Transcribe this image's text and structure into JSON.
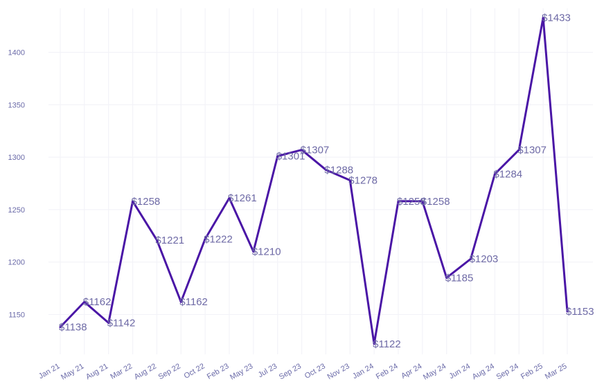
{
  "chart_data": {
    "type": "line",
    "title": "",
    "xlabel": "",
    "ylabel": "",
    "categories": [
      "Jan 21",
      "May 21",
      "Aug 21",
      "Mar 22",
      "Aug 22",
      "Sep 22",
      "Oct 22",
      "Feb 23",
      "May 23",
      "Jul 23",
      "Sep 23",
      "Oct 23",
      "Nov 23",
      "Jan 24",
      "Feb 24",
      "Apr 24",
      "May 24",
      "Jun 24",
      "Aug 24",
      "Sep 24",
      "Feb 25",
      "Mar 25"
    ],
    "series": [
      {
        "values": [
          1138,
          1162,
          1142,
          1258,
          1221,
          1162,
          1222,
          1261,
          1210,
          1301,
          1307,
          1288,
          1278,
          1122,
          1258,
          1258,
          1185,
          1203,
          1284,
          1307,
          1433,
          1153
        ]
      }
    ],
    "data_labels": [
      "$1138",
      "$1162",
      "$1142",
      "$1258",
      "$1221",
      "$1162",
      "$1222",
      "$1261",
      "$1210",
      "$1301",
      "$1307",
      "$1288",
      "$1278",
      "$1122",
      "$1258",
      "$1258",
      "$1185",
      "$1203",
      "$1284",
      "$1307",
      "$1433",
      "$1153"
    ],
    "yticks": [
      1150,
      1200,
      1250,
      1300,
      1350,
      1400
    ],
    "ylim": [
      1112,
      1442
    ],
    "grid": true,
    "line_color": "#4a16a6"
  }
}
